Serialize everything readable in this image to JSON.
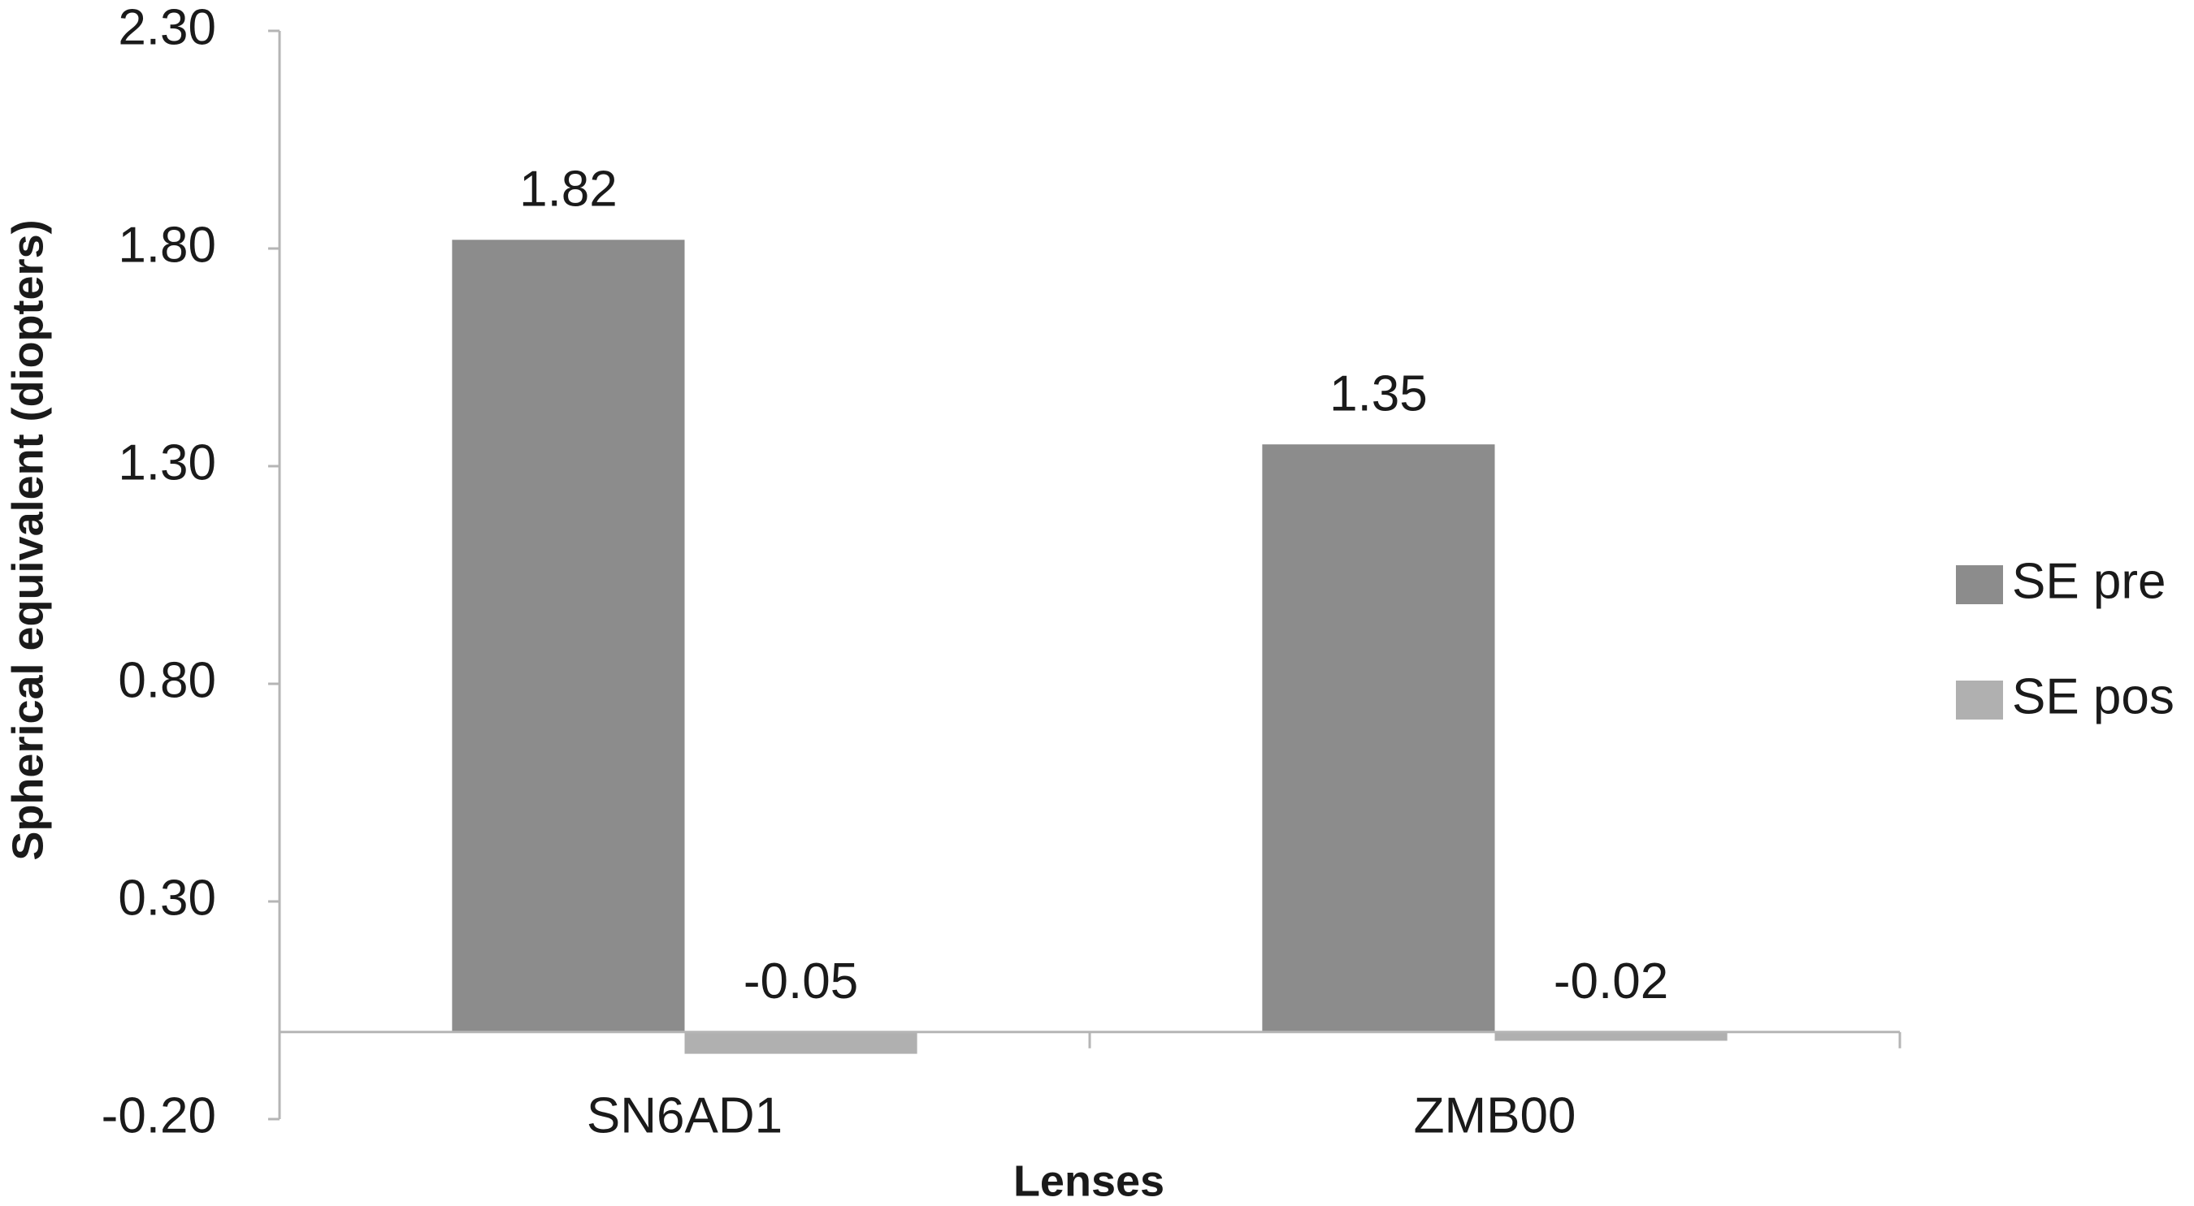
{
  "chart_data": {
    "type": "bar",
    "x_label": "Lenses",
    "y_label": "Spherical equivalent (diopters)",
    "categories": [
      "SN6AD1",
      "ZMB00"
    ],
    "series": [
      {
        "name": "SE pre",
        "color": "#8c8c8c",
        "values": [
          1.82,
          1.35
        ]
      },
      {
        "name": "SE pos",
        "color": "#b0b0b0",
        "values": [
          -0.05,
          -0.02
        ]
      }
    ],
    "ylim": [
      -0.2,
      2.3
    ],
    "yticks": [
      {
        "value": -0.2,
        "label": "-0.20"
      },
      {
        "value": 0.3,
        "label": "0.30"
      },
      {
        "value": 0.8,
        "label": "0.80"
      },
      {
        "value": 1.3,
        "label": "1.30"
      },
      {
        "value": 1.8,
        "label": "1.80"
      },
      {
        "value": 2.3,
        "label": "2.30"
      }
    ],
    "grid": false,
    "legend": "right"
  }
}
